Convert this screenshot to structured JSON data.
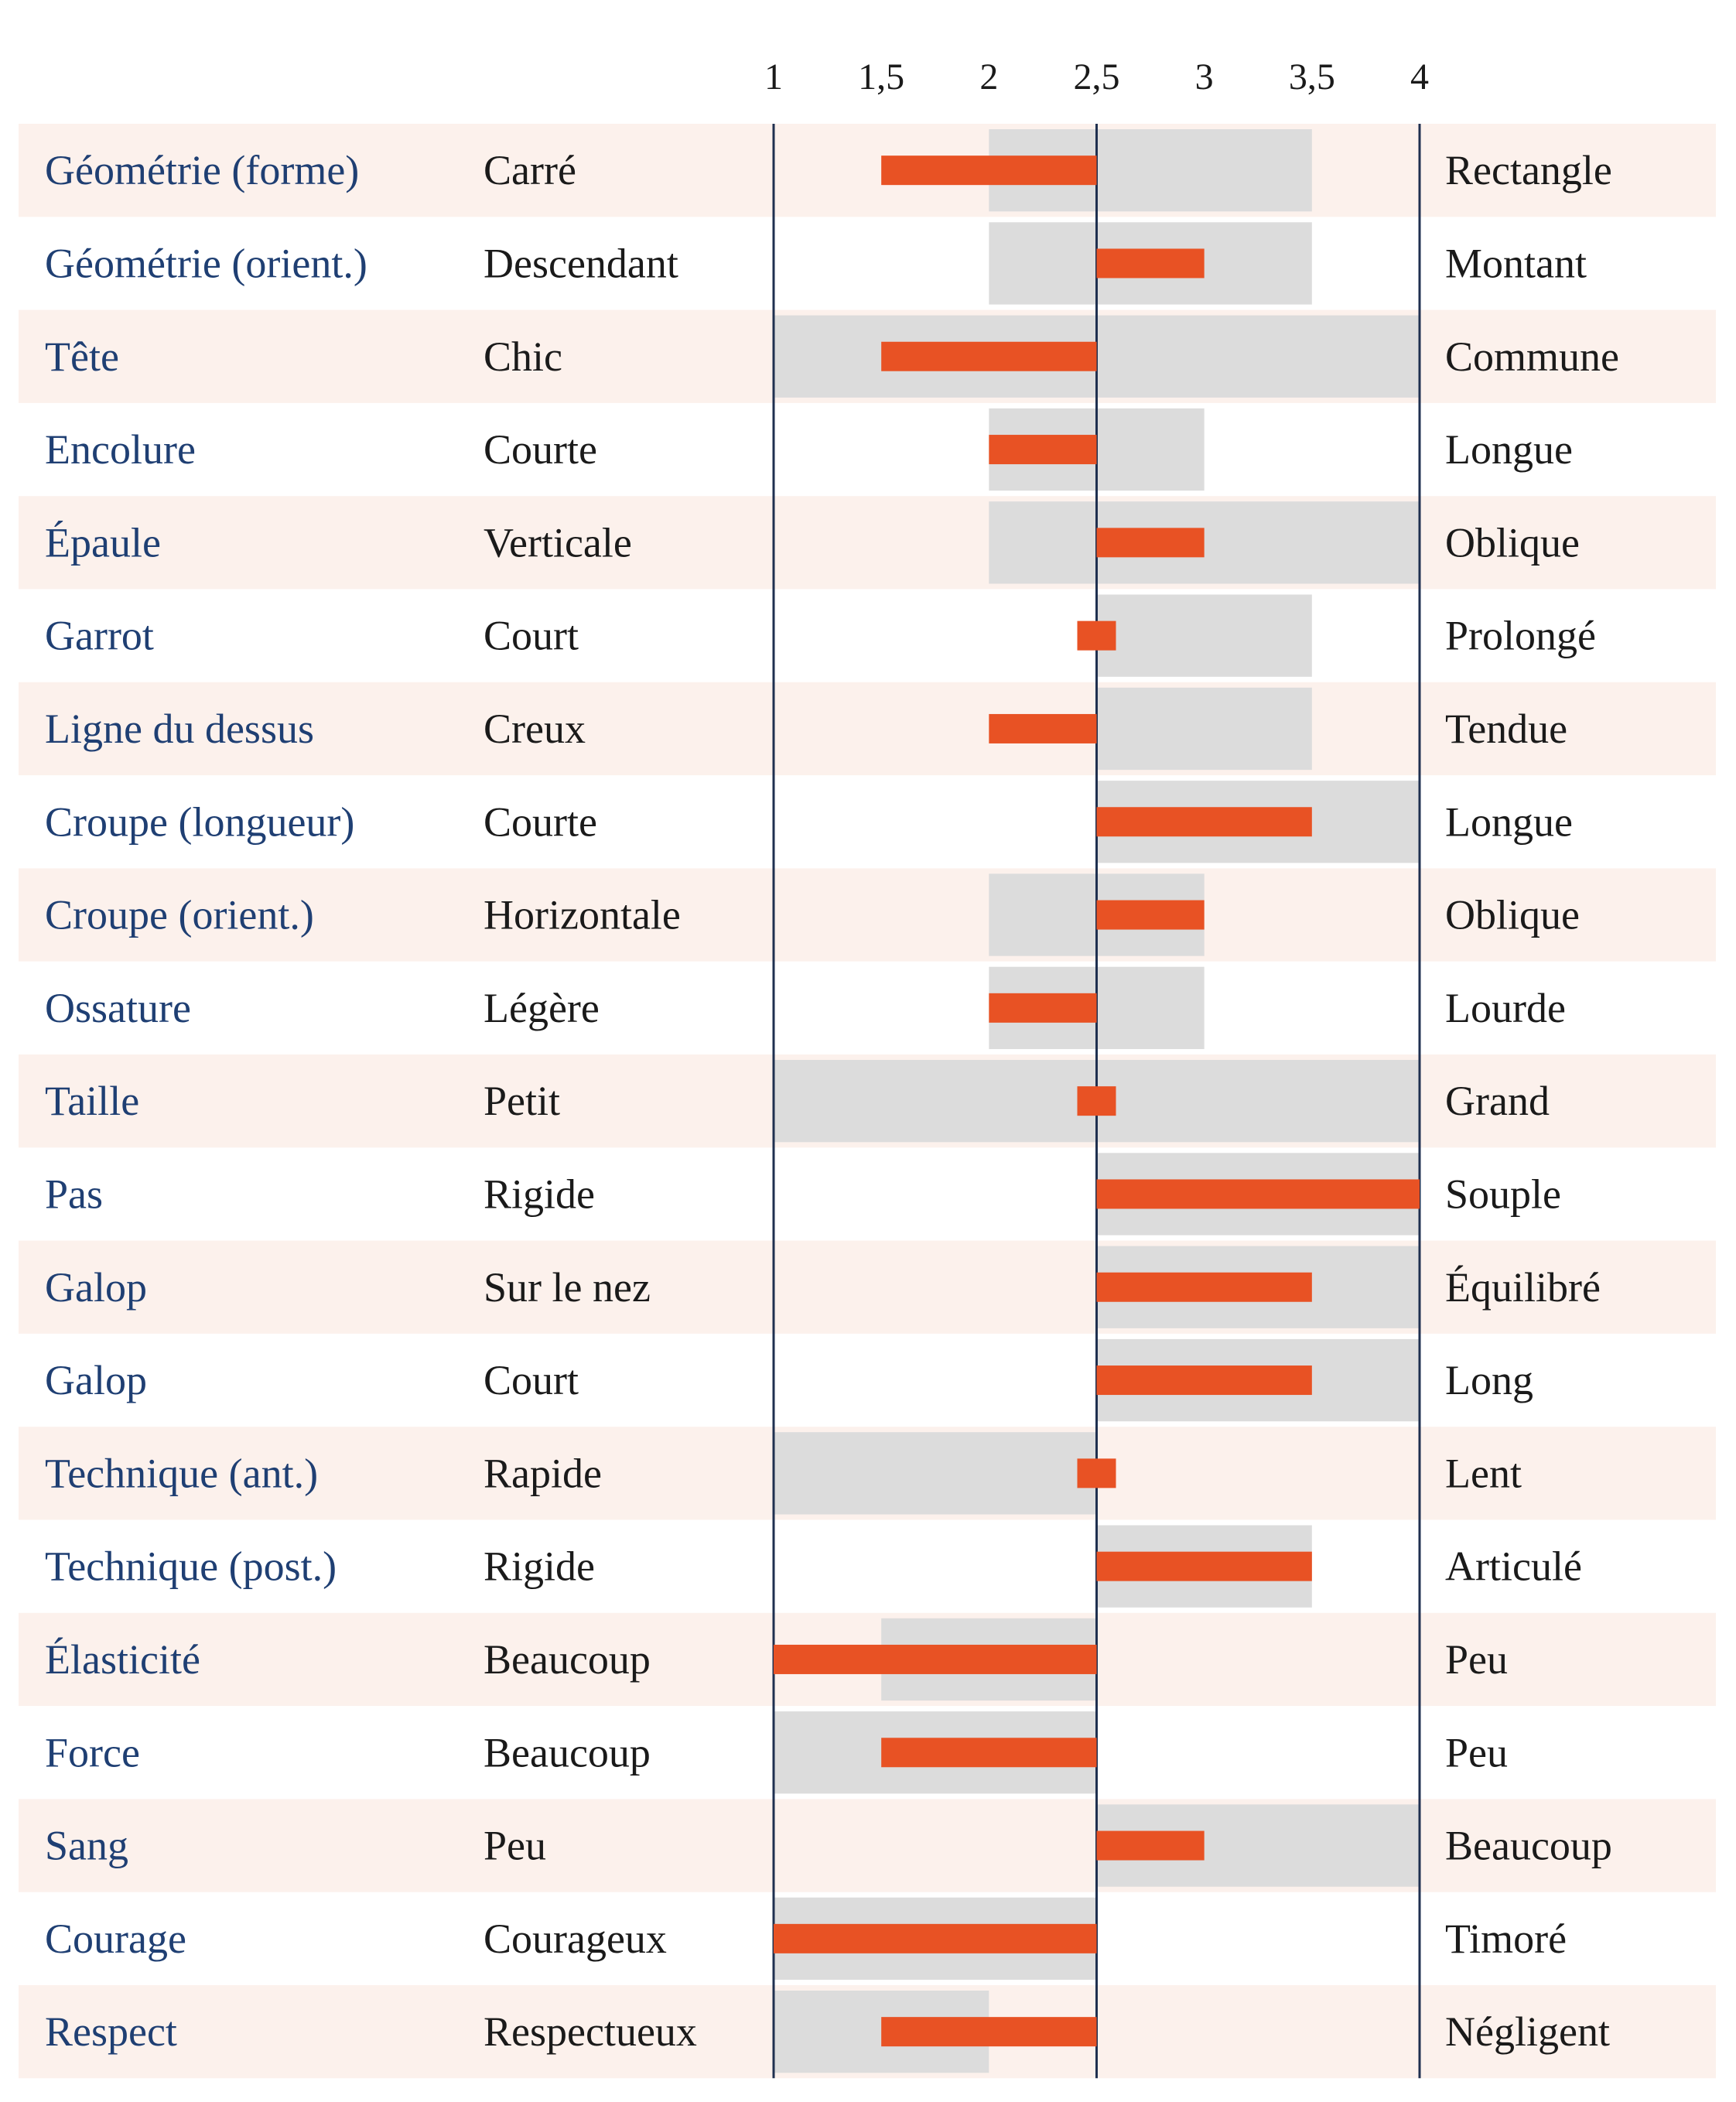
{
  "colors": {
    "row_alt_bg": "#fcf1ec",
    "range_bar": "#dcdcdc",
    "value_bar": "#e85224",
    "axis_line": "#1f3050",
    "trait_text": "#1f3f73",
    "label_text": "#1a1a1a"
  },
  "chart_data": {
    "type": "bar",
    "orientation": "horizontal",
    "title": "",
    "xlim": [
      1,
      4
    ],
    "reference_value": 2.5,
    "ticks": [
      1,
      1.5,
      2,
      2.5,
      3,
      3.5,
      4
    ],
    "tick_labels": [
      "1",
      "1,5",
      "2",
      "2,5",
      "3",
      "3,5",
      "4"
    ],
    "series": [
      {
        "name": "",
        "kind": "range",
        "color": "#dcdcdc"
      },
      {
        "name": "",
        "kind": "value_from_reference",
        "color": "#e85224"
      }
    ],
    "rows": [
      {
        "trait": "Géométrie (forme)",
        "low": "Carré",
        "high": "Rectangle",
        "value": 1.5,
        "range": [
          2,
          3.5
        ]
      },
      {
        "trait": "Géométrie (orient.)",
        "low": "Descendant",
        "high": "Montant",
        "value": 3,
        "range": [
          2,
          3.5
        ]
      },
      {
        "trait": "Tête",
        "low": "Chic",
        "high": "Commune",
        "value": 1.5,
        "range": [
          1,
          4
        ]
      },
      {
        "trait": "Encolure",
        "low": "Courte",
        "high": "Longue",
        "value": 2,
        "range": [
          2,
          3
        ]
      },
      {
        "trait": "Épaule",
        "low": "Verticale",
        "high": "Oblique",
        "value": 3,
        "range": [
          2,
          4
        ]
      },
      {
        "trait": "Garrot",
        "low": "Court",
        "high": "Prolongé",
        "value": 2.55,
        "range": [
          2.5,
          3.5
        ],
        "marker": true
      },
      {
        "trait": "Ligne du dessus",
        "low": "Creux",
        "high": "Tendue",
        "value": 2,
        "range": [
          2.5,
          3.5
        ]
      },
      {
        "trait": "Croupe (longueur)",
        "low": "Courte",
        "high": "Longue",
        "value": 3.5,
        "range": [
          2.5,
          4
        ]
      },
      {
        "trait": "Croupe (orient.)",
        "low": "Horizontale",
        "high": "Oblique",
        "value": 3,
        "range": [
          2,
          3
        ]
      },
      {
        "trait": "Ossature",
        "low": "Légère",
        "high": "Lourde",
        "value": 2,
        "range": [
          2,
          3
        ]
      },
      {
        "trait": "Taille",
        "low": "Petit",
        "high": "Grand",
        "value": 2.55,
        "range": [
          1,
          4
        ],
        "marker": true
      },
      {
        "trait": "Pas",
        "low": "Rigide",
        "high": "Souple",
        "value": 4,
        "range": [
          2.5,
          4
        ]
      },
      {
        "trait": "Galop",
        "low": "Sur le nez",
        "high": "Équilibré",
        "value": 3.5,
        "range": [
          2.5,
          4
        ]
      },
      {
        "trait": "Galop",
        "low": "Court",
        "high": "Long",
        "value": 3.5,
        "range": [
          2.5,
          4
        ]
      },
      {
        "trait": "Technique (ant.)",
        "low": "Rapide",
        "high": "Lent",
        "value": 2.55,
        "range": [
          1,
          2.5
        ],
        "marker": true
      },
      {
        "trait": "Technique (post.)",
        "low": "Rigide",
        "high": "Articulé",
        "value": 3.5,
        "range": [
          2.5,
          3.5
        ]
      },
      {
        "trait": "Élasticité",
        "low": "Beaucoup",
        "high": "Peu",
        "value": 1,
        "range": [
          1.5,
          2.5
        ]
      },
      {
        "trait": "Force",
        "low": "Beaucoup",
        "high": "Peu",
        "value": 1.5,
        "range": [
          1,
          2.5
        ]
      },
      {
        "trait": "Sang",
        "low": "Peu",
        "high": "Beaucoup",
        "value": 3,
        "range": [
          2.5,
          4
        ]
      },
      {
        "trait": "Courage",
        "low": "Courageux",
        "high": "Timoré",
        "value": 1,
        "range": [
          1,
          2.5
        ]
      },
      {
        "trait": "Respect",
        "low": "Respectueux",
        "high": "Négligent",
        "value": 1.5,
        "range": [
          1,
          2
        ]
      }
    ]
  }
}
